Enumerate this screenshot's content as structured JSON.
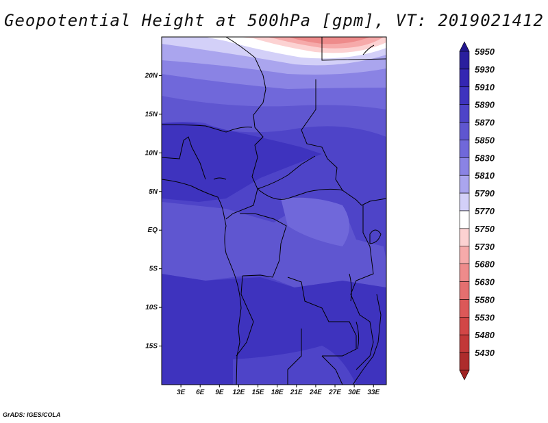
{
  "title": "Geopotential Height at 500hPa [gpm], VT: 2019021412",
  "credit": "GrADS: IGES/COLA",
  "map": {
    "region": "Central Africa",
    "variable": "Geopotential Height",
    "level": "500hPa",
    "units": "gpm",
    "valid_time": "2019021412",
    "lon_range": [
      0,
      35
    ],
    "lat_range": [
      -20,
      25
    ],
    "lat_ticks": [
      {
        "value": 20,
        "label": "20N"
      },
      {
        "value": 15,
        "label": "15N"
      },
      {
        "value": 10,
        "label": "10N"
      },
      {
        "value": 5,
        "label": "5N"
      },
      {
        "value": 0,
        "label": "EQ"
      },
      {
        "value": -5,
        "label": "5S"
      },
      {
        "value": -10,
        "label": "10S"
      },
      {
        "value": -15,
        "label": "15S"
      }
    ],
    "lon_ticks": [
      {
        "value": 3,
        "label": "3E"
      },
      {
        "value": 6,
        "label": "6E"
      },
      {
        "value": 9,
        "label": "9E"
      },
      {
        "value": 12,
        "label": "12E"
      },
      {
        "value": 15,
        "label": "15E"
      },
      {
        "value": 18,
        "label": "18E"
      },
      {
        "value": 21,
        "label": "21E"
      },
      {
        "value": 24,
        "label": "24E"
      },
      {
        "value": 27,
        "label": "27E"
      },
      {
        "value": 30,
        "label": "30E"
      },
      {
        "value": 33,
        "label": "33E"
      }
    ]
  },
  "colorbar": {
    "levels": [
      {
        "label": "5950",
        "color": "#2a1f9e"
      },
      {
        "label": "5930",
        "color": "#3426b2"
      },
      {
        "label": "5910",
        "color": "#3e33be"
      },
      {
        "label": "5890",
        "color": "#4e44c8"
      },
      {
        "label": "5870",
        "color": "#5f56d0"
      },
      {
        "label": "5850",
        "color": "#7068da"
      },
      {
        "label": "5830",
        "color": "#8a83e4"
      },
      {
        "label": "5810",
        "color": "#aaa5ee"
      },
      {
        "label": "5790",
        "color": "#d3d0f8"
      },
      {
        "label": "5770",
        "color": "#ffffff"
      },
      {
        "label": "5750",
        "color": "#fcd2d2"
      },
      {
        "label": "5730",
        "color": "#f6aaaa"
      },
      {
        "label": "5680",
        "color": "#ee8b8b"
      },
      {
        "label": "5630",
        "color": "#e46f6f"
      },
      {
        "label": "5580",
        "color": "#dc5858"
      },
      {
        "label": "5530",
        "color": "#d24646"
      },
      {
        "label": "5480",
        "color": "#c23838"
      },
      {
        "label": "5430",
        "color": "#ad2c2c"
      }
    ],
    "top_cap_color": "#23178f",
    "bottom_cap_color": "#a02424"
  }
}
